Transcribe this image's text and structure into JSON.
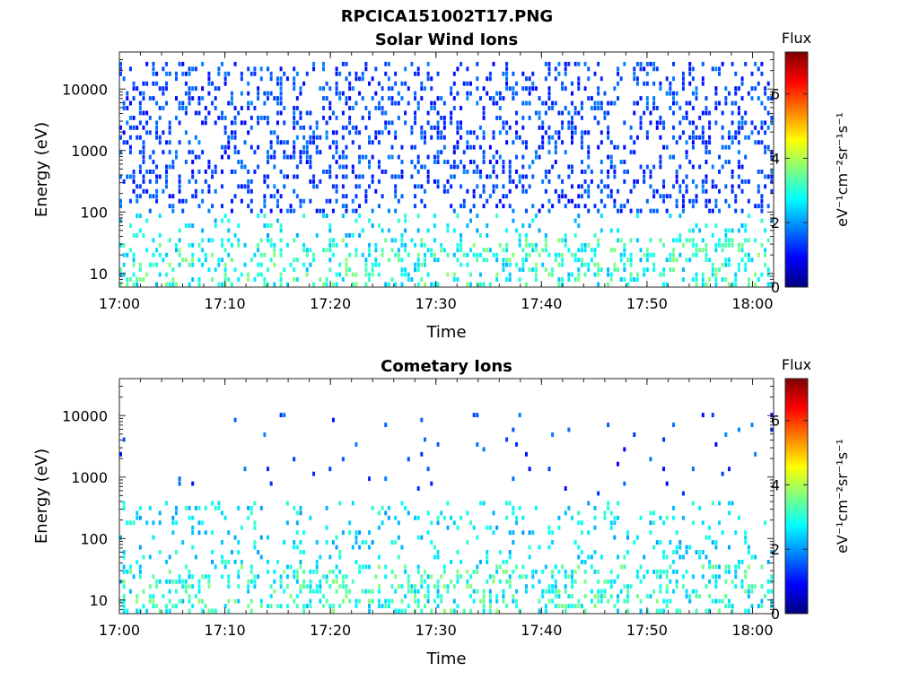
{
  "figure": {
    "title": "RPCICA151002T17.PNG"
  },
  "colormap": [
    "#00007f",
    "#0000ff",
    "#007fff",
    "#00ffff",
    "#7fff7f",
    "#ffff00",
    "#ff7f00",
    "#ff0000",
    "#7f0000"
  ],
  "chart_data": [
    {
      "type": "heatmap",
      "title": "Solar Wind Ions",
      "xlabel": "Time",
      "ylabel": "Energy (eV)",
      "x_ticks": [
        "17:00",
        "17:10",
        "17:20",
        "17:30",
        "17:40",
        "17:50",
        "18:00"
      ],
      "x_range": [
        "17:00",
        "18:02"
      ],
      "y_scale": "log",
      "y_range": [
        6,
        40000
      ],
      "y_ticks": [
        "10",
        "100",
        "1000",
        "10000"
      ],
      "colorbar": {
        "title": "Flux",
        "label": "eV⁻¹cm⁻²sr⁻¹s⁻¹",
        "range": [
          0,
          7.3
        ],
        "ticks": [
          "0",
          "2",
          "4",
          "6"
        ]
      },
      "features": {
        "low_energy_bursts_min": [
          0.5,
          3.1,
          5.8,
          9.0,
          12.2,
          22.0,
          35.0,
          44.5,
          47.5,
          50.2,
          57.5,
          60.5
        ],
        "background_speckle_energy_range_eV": [
          100,
          30000
        ],
        "background_speckle_level": 1.0
      }
    },
    {
      "type": "heatmap",
      "title": "Cometary Ions",
      "xlabel": "Time",
      "ylabel": "Energy (eV)",
      "x_ticks": [
        "17:00",
        "17:10",
        "17:20",
        "17:30",
        "17:40",
        "17:50",
        "18:00"
      ],
      "x_range": [
        "17:00",
        "18:02"
      ],
      "y_scale": "log",
      "y_range": [
        6,
        40000
      ],
      "y_ticks": [
        "10",
        "100",
        "1000",
        "10000"
      ],
      "colorbar": {
        "title": "Flux",
        "label": "eV⁻¹cm⁻²sr⁻¹s⁻¹",
        "range": [
          0,
          7.3
        ],
        "ticks": [
          "0",
          "2",
          "4",
          "6"
        ]
      },
      "features": {
        "low_energy_bursts_min": [
          0.5,
          3.3,
          6.0,
          9.2,
          12.0,
          15.6,
          18.5,
          22.0,
          25.0,
          28.5,
          31.5,
          35.0,
          37.5,
          41.5,
          44.5,
          47.5,
          50.5,
          54.0,
          57.5,
          60.5
        ],
        "background_speckle_energy_range_eV": [
          500,
          12000
        ],
        "background_speckle_level": 0.08
      }
    }
  ]
}
